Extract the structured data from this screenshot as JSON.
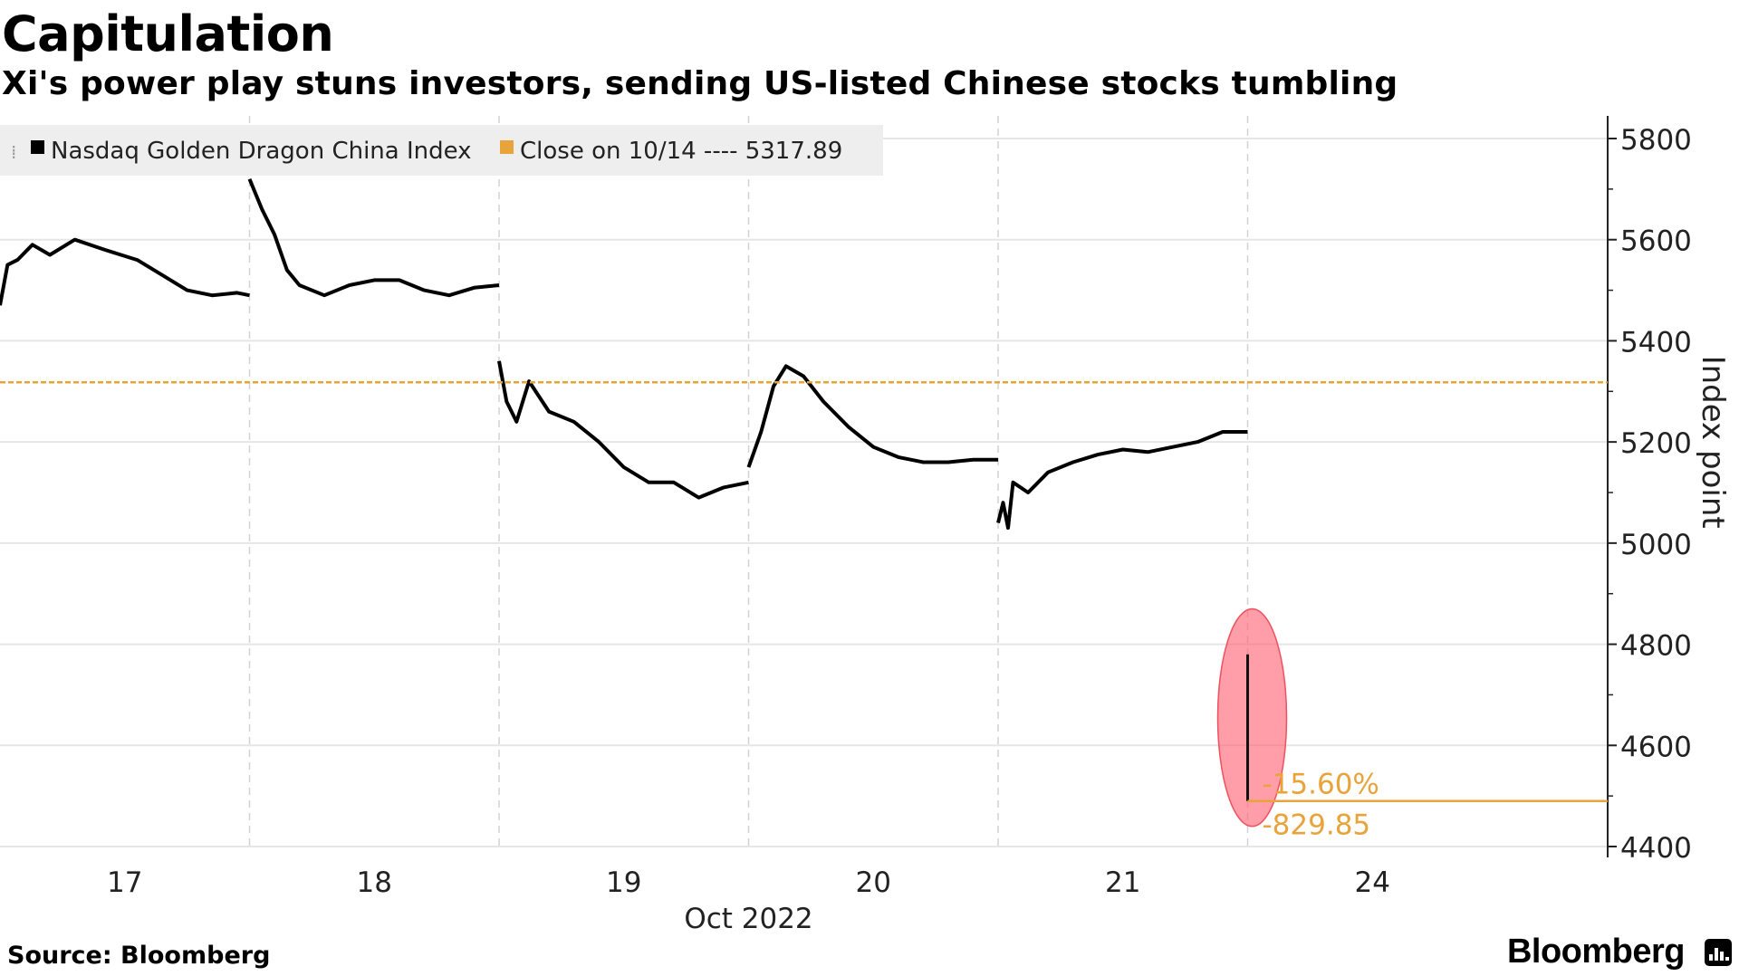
{
  "header": {
    "title": "Capitulation",
    "subtitle": "Xi's power play stuns investors, sending US-listed Chinese stocks tumbling"
  },
  "footer": {
    "source": "Source: Bloomberg",
    "brand": "Bloomberg",
    "brand_icon": "bloomberg-terminal-icon"
  },
  "chart_data": {
    "type": "line",
    "title": "Capitulation",
    "subtitle": "Xi's power play stuns investors, sending US-listed Chinese stocks tumbling",
    "ylabel": "Index point",
    "xlabel": "Oct 2022",
    "ylim": [
      4400,
      5850
    ],
    "yticks": [
      4400,
      4600,
      4800,
      5000,
      5200,
      5400,
      5600,
      5800
    ],
    "x_ticks": [
      "17",
      "18",
      "19",
      "20",
      "21",
      "24"
    ],
    "grid": true,
    "legend_position": "top-left",
    "legend": [
      {
        "label": "Nasdaq Golden Dragon China Index",
        "color": "#000000"
      },
      {
        "label": "Close on 10/14 ---- 5317.89",
        "color": "#e8a33a"
      }
    ],
    "reference_line": {
      "name": "Close on 10/14",
      "value": 5317.89,
      "color": "#e8a33a"
    },
    "series": [
      {
        "name": "Nasdaq Golden Dragon China Index",
        "color": "#000000",
        "sessions": [
          {
            "day": "17",
            "points": [
              [
                0,
                5470
              ],
              [
                0.03,
                5550
              ],
              [
                0.07,
                5560
              ],
              [
                0.13,
                5590
              ],
              [
                0.2,
                5570
              ],
              [
                0.3,
                5600
              ],
              [
                0.42,
                5580
              ],
              [
                0.55,
                5560
              ],
              [
                0.65,
                5530
              ],
              [
                0.75,
                5500
              ],
              [
                0.85,
                5490
              ],
              [
                0.95,
                5495
              ],
              [
                1,
                5490
              ]
            ]
          },
          {
            "day": "18",
            "points": [
              [
                0,
                5720
              ],
              [
                0.05,
                5660
              ],
              [
                0.1,
                5610
              ],
              [
                0.15,
                5540
              ],
              [
                0.2,
                5510
              ],
              [
                0.3,
                5490
              ],
              [
                0.4,
                5510
              ],
              [
                0.5,
                5520
              ],
              [
                0.6,
                5520
              ],
              [
                0.7,
                5500
              ],
              [
                0.8,
                5490
              ],
              [
                0.9,
                5505
              ],
              [
                1,
                5510
              ]
            ]
          },
          {
            "day": "19",
            "points": [
              [
                0,
                5360
              ],
              [
                0.03,
                5280
              ],
              [
                0.07,
                5240
              ],
              [
                0.12,
                5320
              ],
              [
                0.2,
                5260
              ],
              [
                0.3,
                5240
              ],
              [
                0.4,
                5200
              ],
              [
                0.5,
                5150
              ],
              [
                0.6,
                5120
              ],
              [
                0.7,
                5120
              ],
              [
                0.8,
                5090
              ],
              [
                0.9,
                5110
              ],
              [
                1,
                5120
              ]
            ]
          },
          {
            "day": "20",
            "points": [
              [
                0,
                5150
              ],
              [
                0.05,
                5220
              ],
              [
                0.1,
                5310
              ],
              [
                0.15,
                5350
              ],
              [
                0.22,
                5330
              ],
              [
                0.3,
                5280
              ],
              [
                0.4,
                5230
              ],
              [
                0.5,
                5190
              ],
              [
                0.6,
                5170
              ],
              [
                0.7,
                5160
              ],
              [
                0.8,
                5160
              ],
              [
                0.9,
                5165
              ],
              [
                1,
                5165
              ]
            ]
          },
          {
            "day": "21",
            "points": [
              [
                0,
                5040
              ],
              [
                0.02,
                5080
              ],
              [
                0.04,
                5030
              ],
              [
                0.06,
                5120
              ],
              [
                0.12,
                5100
              ],
              [
                0.2,
                5140
              ],
              [
                0.3,
                5160
              ],
              [
                0.4,
                5175
              ],
              [
                0.5,
                5185
              ],
              [
                0.6,
                5180
              ],
              [
                0.7,
                5190
              ],
              [
                0.8,
                5200
              ],
              [
                0.9,
                5220
              ],
              [
                1,
                5220
              ]
            ]
          }
        ]
      }
    ],
    "drop": {
      "day": "24",
      "from": 4780,
      "to": 4490
    },
    "annotations": [
      "-15.60%",
      "-829.85"
    ],
    "highlight_color": "#ff5e6e",
    "annotation_color": "#e8a33a"
  }
}
